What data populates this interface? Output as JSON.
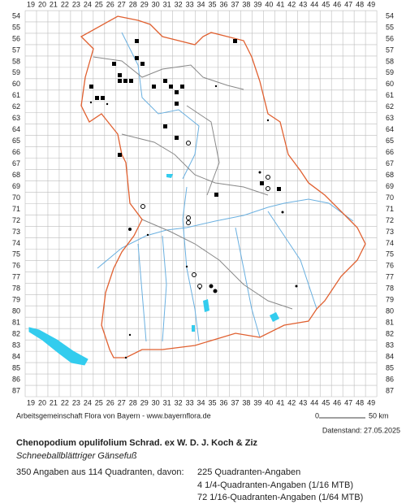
{
  "grid": {
    "columns": [
      19,
      20,
      21,
      22,
      23,
      24,
      25,
      26,
      27,
      28,
      29,
      30,
      31,
      32,
      33,
      34,
      35,
      36,
      37,
      38,
      39,
      40,
      41,
      42,
      43,
      44,
      45,
      46,
      47,
      48,
      49
    ],
    "rows": [
      54,
      55,
      56,
      57,
      58,
      59,
      60,
      61,
      62,
      63,
      64,
      65,
      66,
      67,
      68,
      69,
      70,
      71,
      72,
      73,
      74,
      75,
      76,
      77,
      78,
      79,
      80,
      81,
      82,
      83,
      84,
      85,
      86,
      87
    ]
  },
  "credit": "Arbeitsgemeinschaft Flora von Bayern - www.bayernflora.de",
  "scale": {
    "start": "0",
    "end": "50 km"
  },
  "date": "Datenstand: 27.05.2025",
  "title": "Chenopodium opulifolium Schrad. ex W. D. J. Koch & Ziz",
  "subtitle": "Schneeballblättriger Gänsefuß",
  "stats": {
    "summary": "350 Angaben aus 114 Quadranten, davon:",
    "lines": [
      "225 Quadranten-Angaben",
      "4 1/4-Quadranten-Angaben (1/16 MTB)",
      "72 1/16-Quadranten-Angaben (1/64 MTB)"
    ]
  }
}
